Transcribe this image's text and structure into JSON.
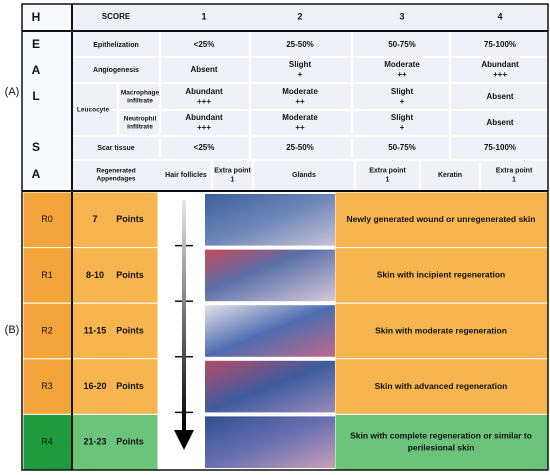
{
  "label_a": "(A)",
  "label_b": "(B)",
  "heal_letters": [
    "H",
    "E",
    "A",
    "L",
    "S",
    "A"
  ],
  "table": {
    "header": [
      "SCORE",
      "1",
      "2",
      "3",
      "4"
    ],
    "epithelization": {
      "label": "Epithelization",
      "cells": [
        [
          "<25%"
        ],
        [
          "25-50%"
        ],
        [
          "50-75%"
        ],
        [
          "75-100%"
        ]
      ]
    },
    "angiogenesis": {
      "label": "Angiogenesis",
      "cells": [
        [
          "Absent"
        ],
        [
          "Slight",
          "+"
        ],
        [
          "Moderate",
          "++"
        ],
        [
          "Abundant",
          "+++"
        ]
      ]
    },
    "leucocyte": {
      "label": "Leucocyte",
      "macrophage": {
        "label": [
          "Macrophage",
          "infiltrate"
        ],
        "cells": [
          [
            "Abundant",
            "+++"
          ],
          [
            "Moderate",
            "++"
          ],
          [
            "Slight",
            "+"
          ],
          [
            "Absent"
          ]
        ]
      },
      "neutrophil": {
        "label": [
          "Neutrophil",
          "infiltrate"
        ],
        "cells": [
          [
            "Abundant",
            "+++"
          ],
          [
            "Moderate",
            "++"
          ],
          [
            "Slight",
            "+"
          ],
          [
            "Absent"
          ]
        ]
      }
    },
    "scar": {
      "label": "Scar tissue",
      "cells": [
        [
          "<25%"
        ],
        [
          "25-50%"
        ],
        [
          "50-75%"
        ],
        [
          "75-100%"
        ]
      ]
    },
    "appendages": {
      "label": [
        "Regenerated",
        "Appendages"
      ],
      "cells": [
        [
          "Hair follicles"
        ],
        [
          "Extra point",
          "1"
        ],
        [
          "Glands"
        ],
        [
          "Extra point",
          "1"
        ],
        [
          "Keratin"
        ],
        [
          "Extra point",
          "1"
        ]
      ]
    }
  },
  "levels": [
    {
      "grade": "R0",
      "points": "7",
      "unit": "Points",
      "description": [
        "Newly generated wound or unregenerated skin"
      ]
    },
    {
      "grade": "R1",
      "points": "8-10",
      "unit": "Points",
      "description": [
        "Skin with incipient regeneration"
      ]
    },
    {
      "grade": "R2",
      "points": "11-15",
      "unit": "Points",
      "description": [
        "Skin with moderate regeneration"
      ]
    },
    {
      "grade": "R3",
      "points": "16-20",
      "unit": "Points",
      "description": [
        "Skin with advanced regeneration"
      ]
    },
    {
      "grade": "R4",
      "points": "21-23",
      "unit": "Points",
      "description": [
        "Skin with complete regeneration or similar to",
        "perilesional skin"
      ]
    }
  ]
}
